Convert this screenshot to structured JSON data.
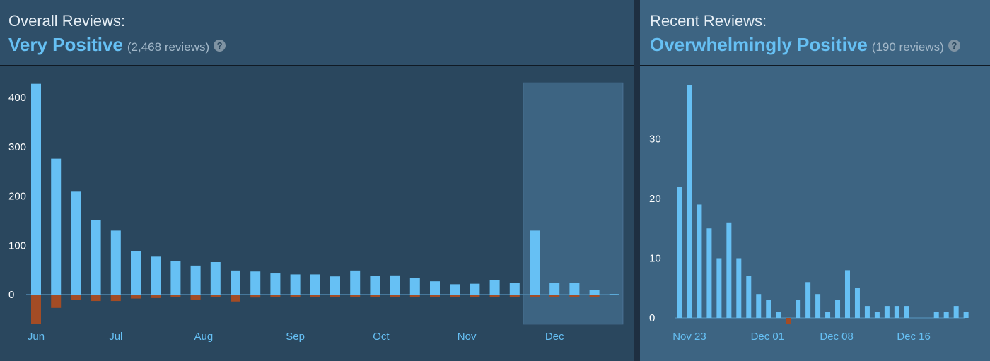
{
  "overall": {
    "label": "Overall Reviews:",
    "summary": "Very Positive",
    "count": "(2,468 reviews)",
    "help": "?"
  },
  "recent": {
    "label": "Recent Reviews:",
    "summary": "Overwhelmingly Positive",
    "count": "(190 reviews)",
    "help": "?"
  },
  "colors": {
    "positive": "#66c0f4",
    "negative": "#a34c25",
    "highlight": "#3d6482",
    "zero_line": "#4f87ad"
  },
  "chart_data": [
    {
      "type": "bar",
      "stacked": "diverging",
      "ylim": [
        -60,
        430
      ],
      "yticks": [
        0,
        100,
        200,
        300,
        400
      ],
      "x_labels": [
        "Jun",
        "Jul",
        "Aug",
        "Sep",
        "Oct",
        "Nov",
        "Dec"
      ],
      "x_label_indices": [
        0,
        4,
        8.4,
        13,
        17.3,
        21.6,
        26
      ],
      "highlight_range": [
        25,
        29
      ],
      "series": [
        {
          "values": [
            428,
            276,
            209,
            152,
            130,
            88,
            77,
            68,
            59,
            66,
            49,
            47,
            43,
            41,
            41,
            37,
            49,
            38,
            39,
            34,
            27,
            21,
            22,
            29,
            23,
            130,
            23,
            23,
            9,
            1
          ]
        },
        {
          "values": [
            -60,
            -27,
            -11,
            -13,
            -13,
            -8,
            -7,
            -4,
            -10,
            -4,
            -14,
            -6,
            -2,
            -2,
            -4,
            -5,
            -3,
            -4,
            -5,
            -2,
            -3,
            -5,
            -3,
            -2,
            -2,
            -2,
            -1,
            -1,
            -1,
            0
          ]
        }
      ]
    },
    {
      "type": "bar",
      "stacked": "diverging",
      "ylim": [
        -1,
        40
      ],
      "yticks": [
        0,
        10,
        20,
        30
      ],
      "x_labels": [
        "Nov 23",
        "Dec 01",
        "Dec 08",
        "Dec 16"
      ],
      "x_label_indices": [
        1,
        8.9,
        15.9,
        23.7
      ],
      "series": [
        {
          "values": [
            22,
            39,
            19,
            15,
            10,
            16,
            10,
            7,
            4,
            3,
            1,
            0,
            3,
            6,
            4,
            1,
            3,
            8,
            5,
            2,
            1,
            2,
            2,
            2,
            0,
            0,
            1,
            1,
            2,
            1
          ]
        },
        {
          "values": [
            0,
            0,
            0,
            0,
            0,
            0,
            0,
            0,
            0,
            0,
            0,
            -1,
            0,
            0,
            0,
            0,
            0,
            0,
            0,
            0,
            0,
            0,
            0,
            0,
            0,
            0,
            0,
            0,
            0,
            0
          ]
        }
      ]
    }
  ]
}
